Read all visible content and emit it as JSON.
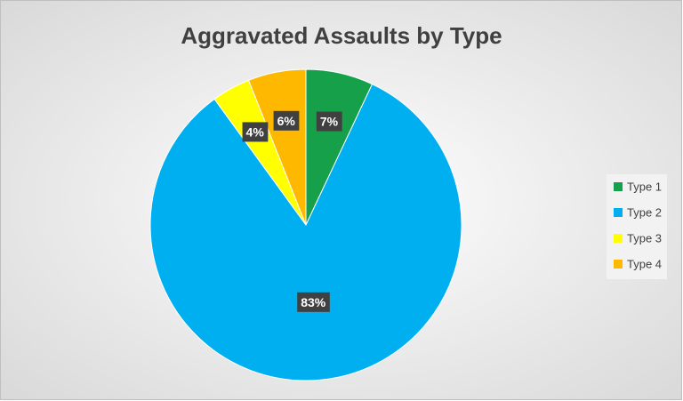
{
  "chart_data": {
    "type": "pie",
    "title": "Aggravated Assaults by Type",
    "categories": [
      "Type 1",
      "Type 2",
      "Type 3",
      "Type 4"
    ],
    "values": [
      7,
      83,
      4,
      6
    ],
    "value_labels": [
      "7%",
      "83%",
      "4%",
      "6%"
    ],
    "colors": [
      "#16a04a",
      "#00aff0",
      "#ffff00",
      "#ffb800"
    ],
    "legend": "right"
  }
}
